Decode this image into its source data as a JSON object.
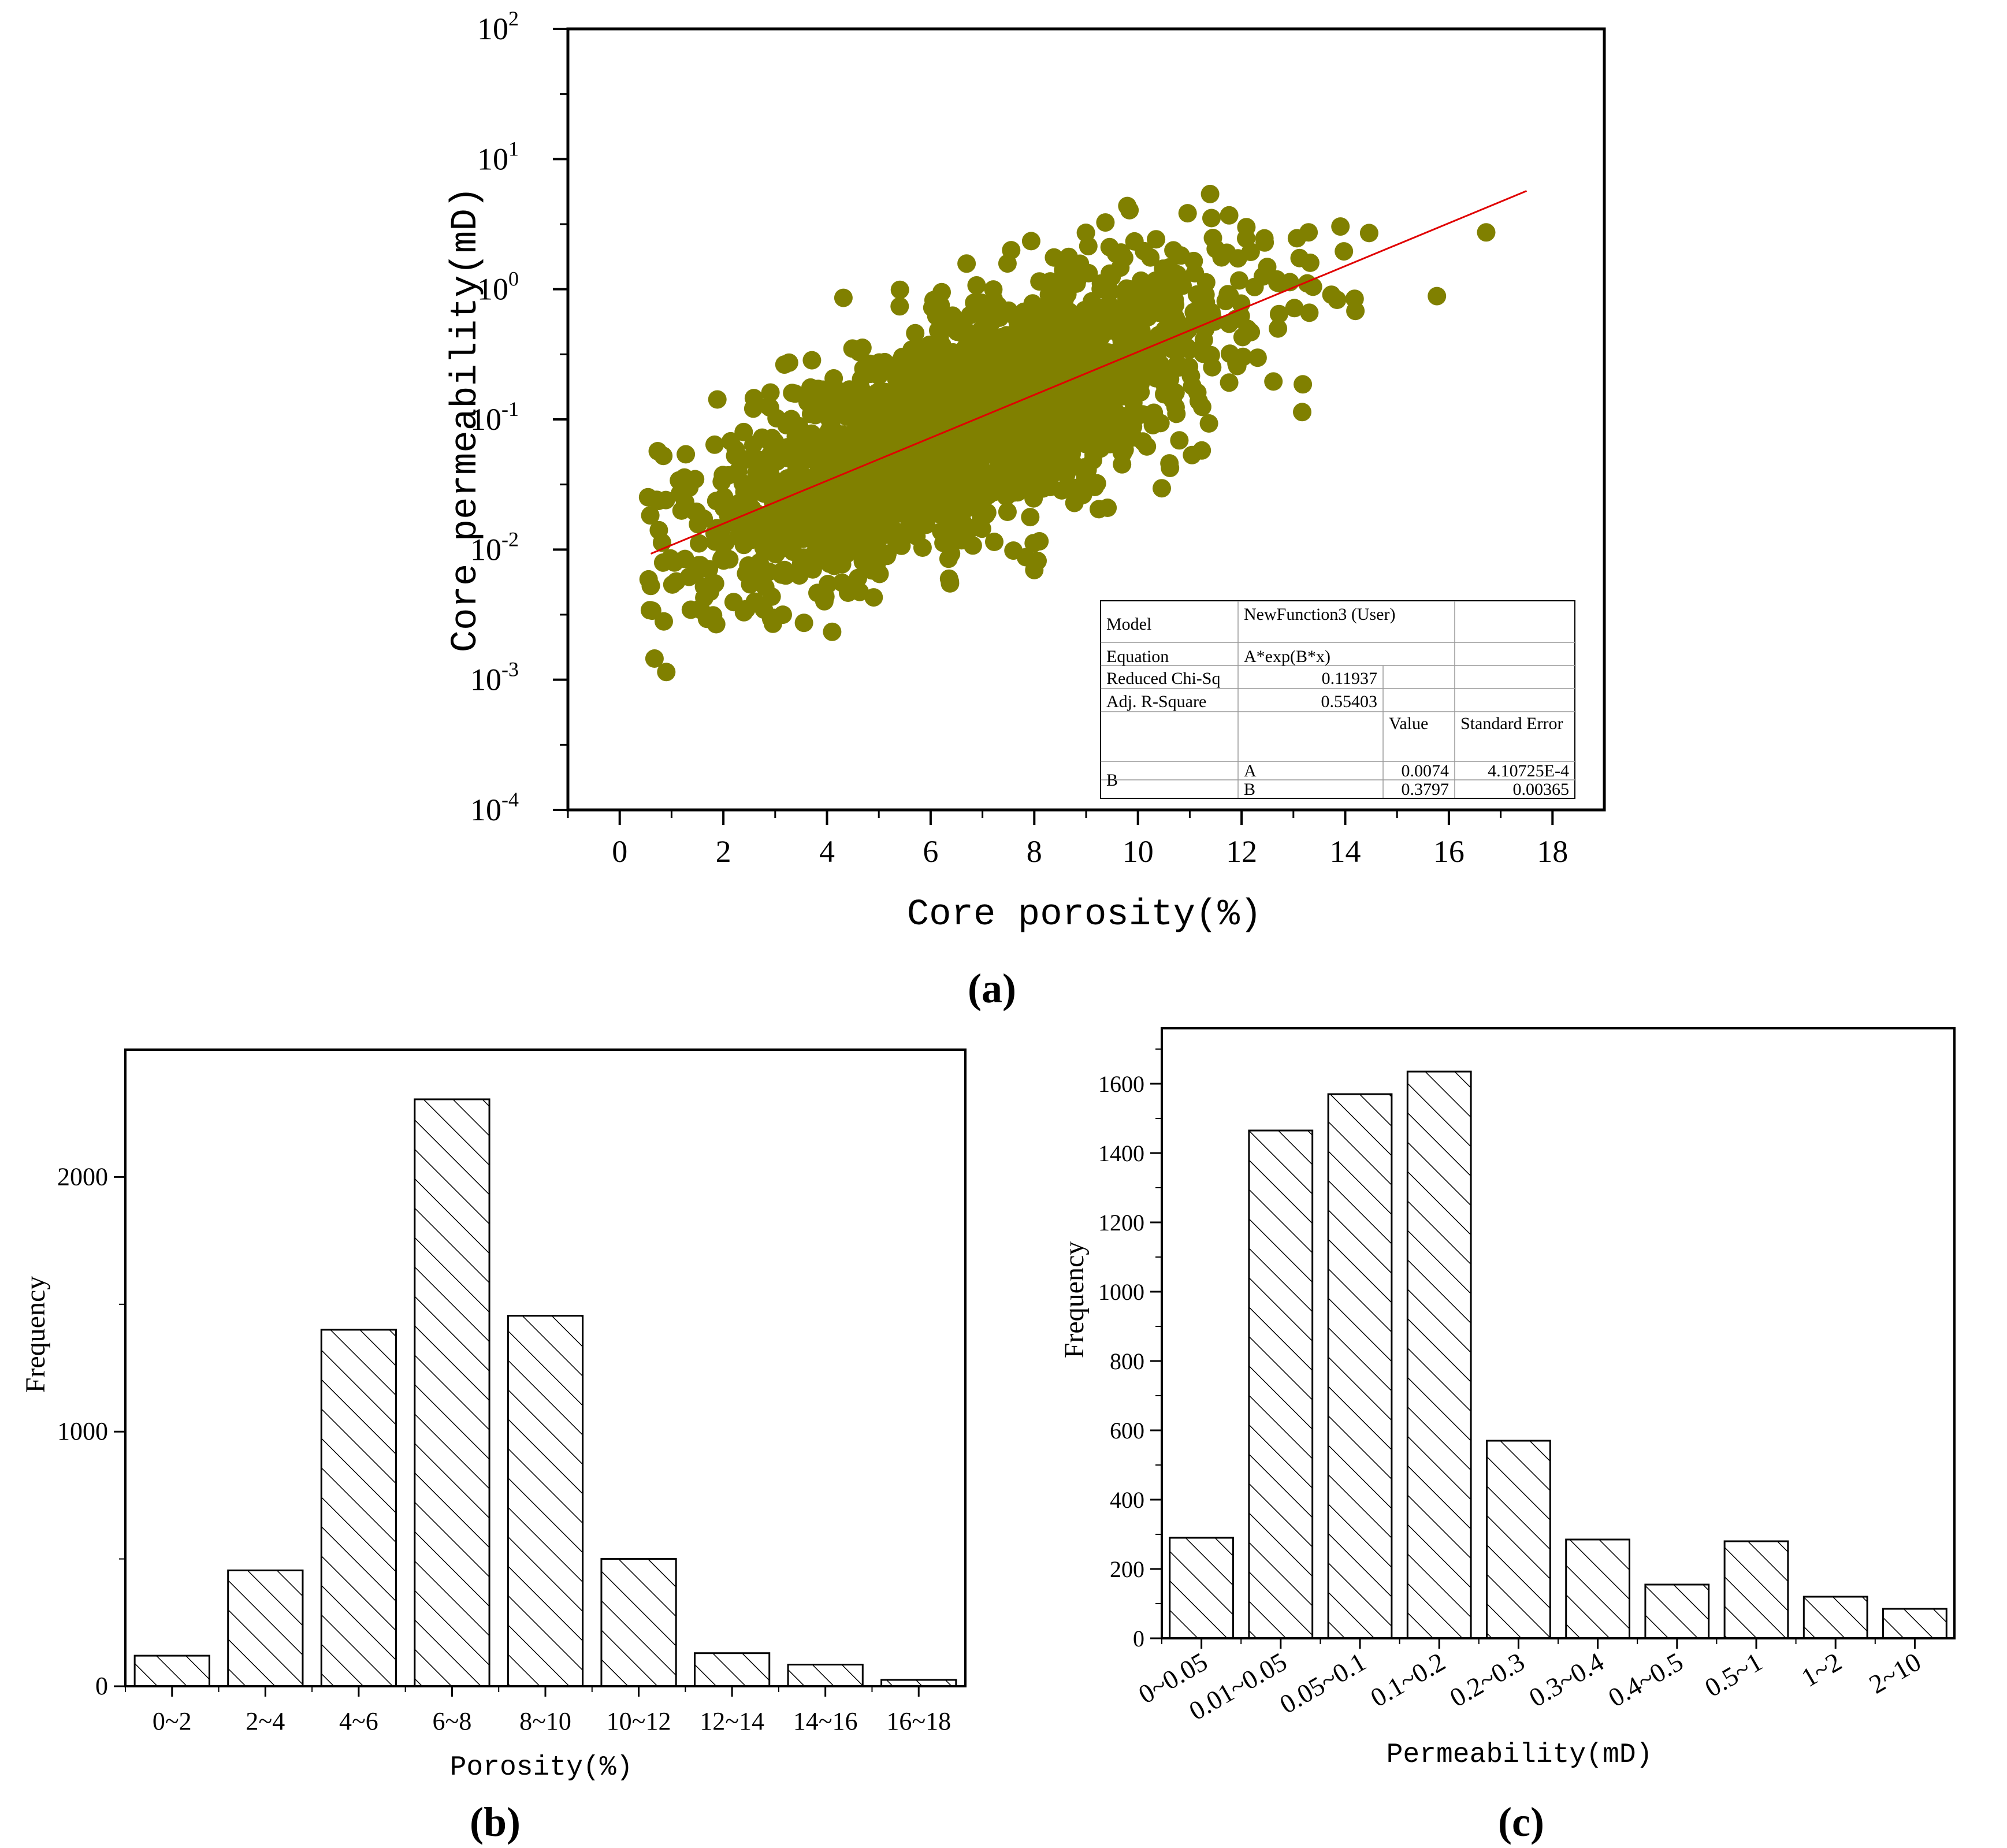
{
  "figure": {
    "panel_labels": {
      "a": "(a)",
      "b": "(b)",
      "c": "(c)"
    },
    "colors": {
      "scatter": "#808000",
      "fit_line": "#e00000",
      "axis": "#000000",
      "hatch": "#000000",
      "background": "#ffffff"
    }
  },
  "chart_data": [
    {
      "id": "a",
      "type": "scatter",
      "title": "",
      "xlabel": "Core porosity(%)",
      "ylabel": "Core permeability(mD)",
      "xlim": [
        -1,
        19
      ],
      "xticks": [
        0,
        2,
        4,
        6,
        8,
        10,
        12,
        14,
        16,
        18
      ],
      "xtick_labels": [
        "0",
        "2",
        "4",
        "6",
        "8",
        "10",
        "12",
        "14",
        "16",
        "18"
      ],
      "yscale": "log",
      "ylim": [
        0.0001,
        100
      ],
      "yticks": [
        0.0001,
        0.001,
        0.01,
        0.1,
        1,
        10,
        100
      ],
      "ytick_labels": [
        {
          "base": "10",
          "exp": "-4"
        },
        {
          "base": "10",
          "exp": "-3"
        },
        {
          "base": "10",
          "exp": "-2"
        },
        {
          "base": "10",
          "exp": "-1"
        },
        {
          "base": "10",
          "exp": "0"
        },
        {
          "base": "10",
          "exp": "1"
        },
        {
          "base": "10",
          "exp": "2"
        }
      ],
      "points": {
        "count": 2200,
        "x_range": [
          0.5,
          17.6
        ],
        "trend": "ln(k) = ln(0.0074) + 0.3797*x",
        "log10_scatter_sd": 0.42
      },
      "fit": {
        "model": "A*exp(B*x)",
        "A": 0.0074,
        "B": 0.3797,
        "x_range": [
          0.6,
          17.5
        ],
        "color": "#e00000"
      },
      "stats_table": {
        "rows": [
          [
            "Model",
            "NewFunction3 (User)",
            "",
            ""
          ],
          [
            "Equation",
            "A*exp(B*x)",
            "",
            ""
          ],
          [
            "Reduced Chi-Sq",
            "0.11937",
            "",
            ""
          ],
          [
            "Adj. R-Square",
            "0.55403",
            "",
            ""
          ],
          [
            "",
            "",
            "Value",
            "Standard Error"
          ],
          [
            "B",
            "A",
            "0.0074",
            "4.10725E-4"
          ],
          [
            "",
            "B",
            "0.3797",
            "0.00365"
          ]
        ]
      },
      "legend": "none",
      "grid": false
    },
    {
      "id": "b",
      "type": "bar",
      "title": "",
      "xlabel": "Porosity(%)",
      "ylabel": "Frequency",
      "categories": [
        "0~2",
        "2~4",
        "4~6",
        "6~8",
        "8~10",
        "10~12",
        "12~14",
        "14~16",
        "16~18"
      ],
      "values": [
        120,
        455,
        1400,
        2305,
        1455,
        500,
        130,
        85,
        25
      ],
      "ylim": [
        0,
        2500
      ],
      "yticks": [
        0,
        1000,
        2000
      ],
      "hatch": "diagonal",
      "grid": false
    },
    {
      "id": "c",
      "type": "bar",
      "title": "",
      "xlabel": "Permeability(mD)",
      "ylabel": "Frequency",
      "categories": [
        "0~0.05",
        "0.01~0.05",
        "0.05~0.1",
        "0.1~0.2",
        "0.2~0.3",
        "0.3~0.4",
        "0.4~0.5",
        "0.5~1",
        "1~2",
        "2~10"
      ],
      "values": [
        290,
        1465,
        1570,
        1635,
        570,
        285,
        155,
        280,
        120,
        85
      ],
      "ylim": [
        0,
        1760
      ],
      "yticks": [
        0,
        200,
        400,
        600,
        800,
        1000,
        1200,
        1400,
        1600
      ],
      "hatch": "diagonal",
      "grid": false
    }
  ]
}
